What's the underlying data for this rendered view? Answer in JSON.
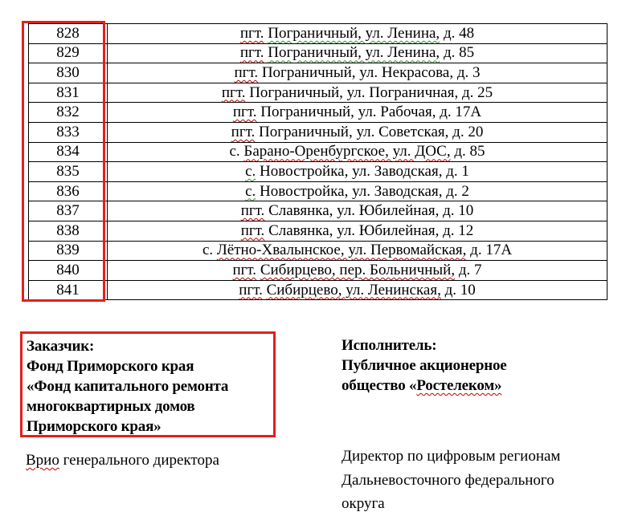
{
  "table": {
    "rows": [
      {
        "num": "828",
        "address": "пгт. Пограничный, ул. Ленина, д. 48",
        "marks": [
          [
            "пгт.",
            "red"
          ],
          [
            "Пограничный, ул. Ленина,",
            "green"
          ]
        ]
      },
      {
        "num": "829",
        "address": "пгт. Пограничный, ул. Ленина, д. 85",
        "marks": [
          [
            "пгт.",
            "red"
          ],
          [
            "Пограничный, ул. Ленина,",
            "green"
          ]
        ]
      },
      {
        "num": "830",
        "address": "пгт. Пограничный, ул. Некрасова, д. 3",
        "marks": [
          [
            "пгт.",
            "red"
          ]
        ]
      },
      {
        "num": "831",
        "address": "пгт. Пограничный, ул. Пограничная, д. 25",
        "marks": [
          [
            "пгт.",
            "red"
          ]
        ]
      },
      {
        "num": "832",
        "address": "пгт. Пограничный, ул. Рабочая, д. 17А",
        "marks": [
          [
            "пгт.",
            "red"
          ]
        ]
      },
      {
        "num": "833",
        "address": "пгт. Пограничный, ул. Советская, д. 20",
        "marks": [
          [
            "пгт.",
            "red"
          ]
        ]
      },
      {
        "num": "834",
        "address": "с. Барано-Оренбургское, ул. ДОС, д. 85",
        "marks": [
          [
            "Барано-Оренбургское, ул. ДОС,",
            "red"
          ]
        ]
      },
      {
        "num": "835",
        "address": "с. Новостройка, ул. Заводская, д. 1",
        "marks": [
          [
            "с.",
            "green"
          ]
        ]
      },
      {
        "num": "836",
        "address": "с. Новостройка, ул. Заводская, д. 2",
        "marks": [
          [
            "с.",
            "green"
          ]
        ]
      },
      {
        "num": "837",
        "address": "пгт. Славянка, ул. Юбилейная, д. 10",
        "marks": [
          [
            "пгт.",
            "red"
          ]
        ]
      },
      {
        "num": "838",
        "address": "пгт. Славянка, ул. Юбилейная, д. 12",
        "marks": [
          [
            "пгт.",
            "red"
          ]
        ]
      },
      {
        "num": "839",
        "address": "с. Лётно-Хвалынское, ул. Первомайская, д. 17А",
        "marks": [
          [
            "Лётно-Хвалынское, ул. Первомайская,",
            "red"
          ]
        ]
      },
      {
        "num": "840",
        "address": "пгт. Сибирцево, пер. Больничный, д. 7",
        "marks": [
          [
            "пгт.",
            "red"
          ],
          [
            "Сибирцево, пер. Больничный,",
            "red"
          ]
        ]
      },
      {
        "num": "841",
        "address": "пгт. Сибирцево, ул. Ленинская, д. 10",
        "marks": [
          [
            "пгт.",
            "red"
          ],
          [
            "Сибирцево, ул. Ленинская,",
            "red"
          ]
        ]
      }
    ]
  },
  "parties": {
    "customer": {
      "label": "Заказчик:",
      "lines": [
        "Фонд Приморского края",
        "«Фонд капитального ремонта",
        "многоквартирных домов",
        "Приморского края»"
      ]
    },
    "contractor": {
      "label": "Исполнитель:",
      "line1": "Публичное акционерное",
      "line2": {
        "text": "общество «Ростелеком»",
        "marks": [
          [
            "Ростелеком»",
            "red"
          ]
        ]
      }
    }
  },
  "signatures": {
    "customer": {
      "text": "Врио генерального директора",
      "marks": [
        [
          "Врио",
          "red"
        ]
      ]
    },
    "contractor_lines": [
      "Директор по цифровым регионам",
      "Дальневосточного федерального",
      "округа"
    ]
  },
  "colors": {
    "annotation_red": "#e3201b",
    "spellcheck_red": "#c00000",
    "spellcheck_green": "#2f8f2f",
    "table_border": "#000000"
  }
}
